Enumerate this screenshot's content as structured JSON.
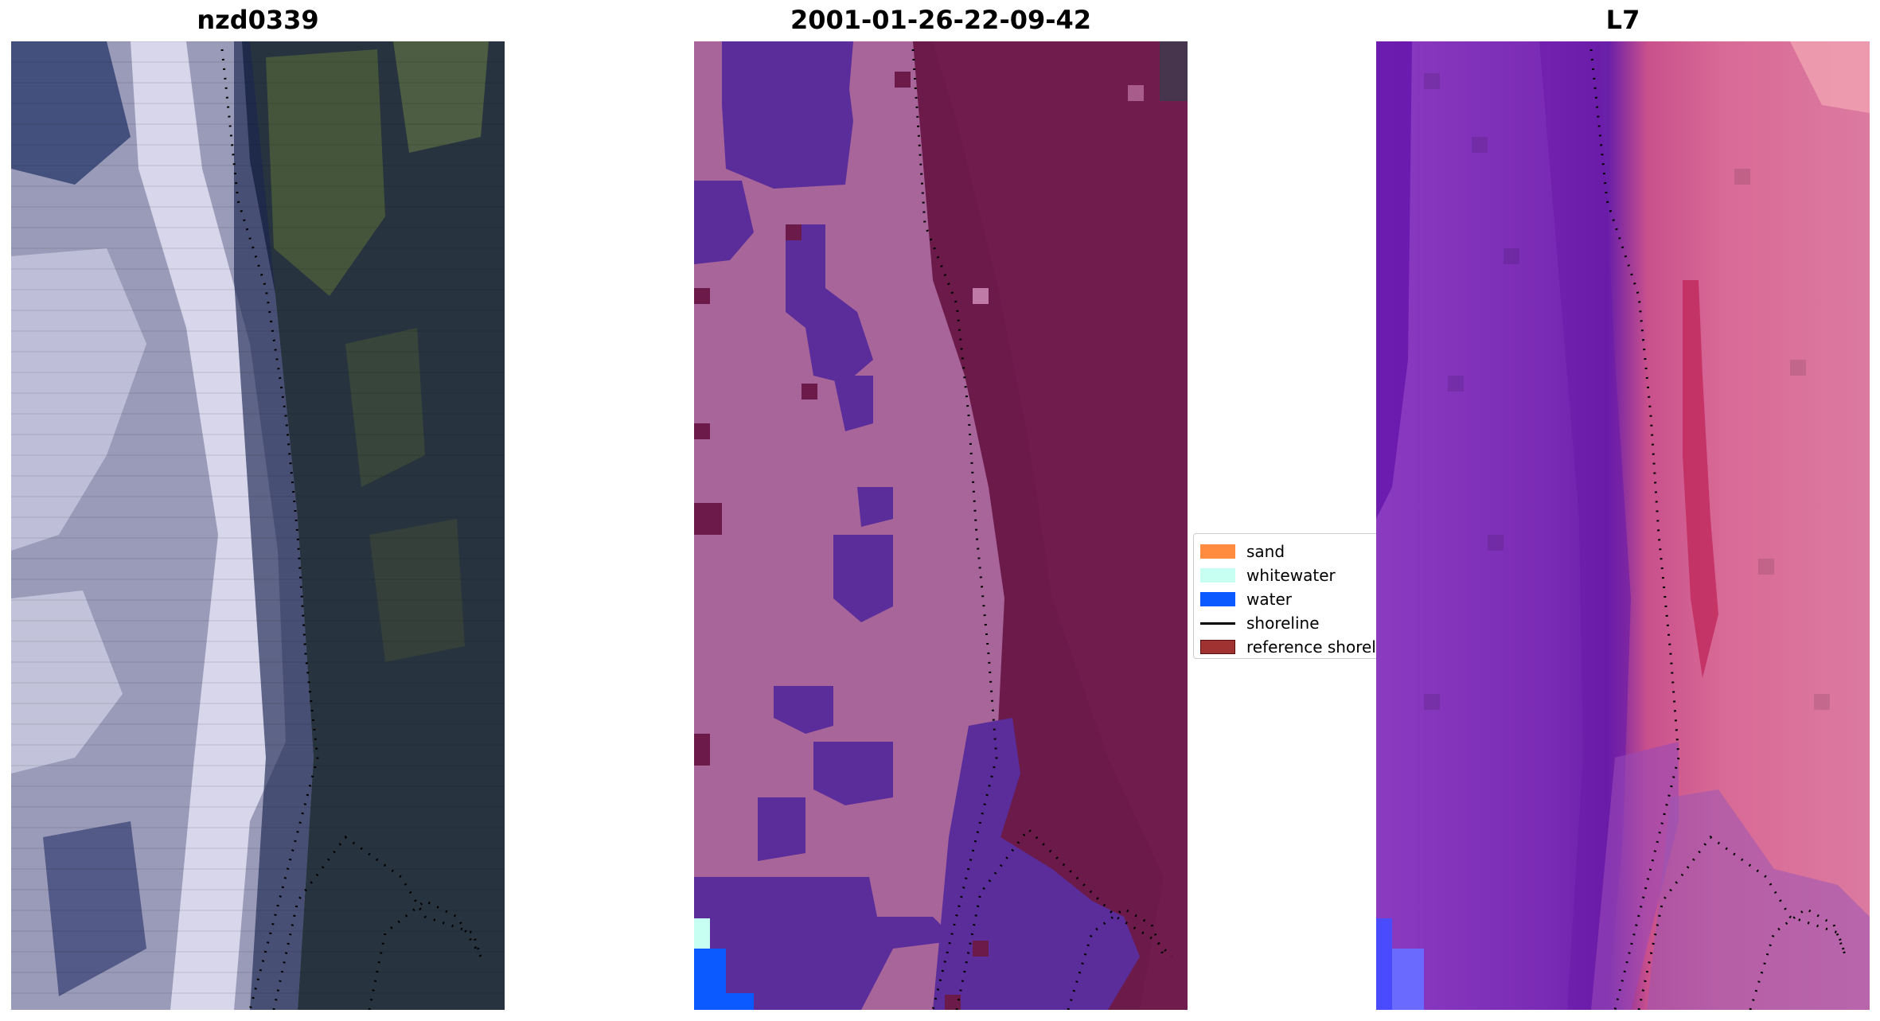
{
  "panels": [
    {
      "title": "nzd0339"
    },
    {
      "title": "2001-01-26-22-09-42"
    },
    {
      "title": "L7"
    }
  ],
  "legend": {
    "items": [
      {
        "label": "sand",
        "kind": "patch",
        "color": "#ff8c3f",
        "icon": "sand-swatch"
      },
      {
        "label": "whitewater",
        "kind": "patch",
        "color": "#c8fff3",
        "icon": "whitewater-swatch"
      },
      {
        "label": "water",
        "kind": "patch",
        "color": "#0a5aff",
        "icon": "water-swatch"
      },
      {
        "label": "shoreline",
        "kind": "line",
        "color": "#000000",
        "icon": "shoreline-line"
      },
      {
        "label": "reference shoreline",
        "kind": "patch",
        "color": "#a03232",
        "icon": "reference-shoreline-swatch"
      }
    ]
  },
  "colors": {
    "rgb_land": "#2a3542",
    "rgb_vegetation": "#4b5d3c",
    "rgb_surf": "#d8d8f0",
    "class_sand_overlay": "#a8659a",
    "class_water_overlay": "#5a2d9a",
    "class_land": "#6b1a4a",
    "index_low": "#7a2bb5",
    "index_high": "#d85a8a"
  }
}
